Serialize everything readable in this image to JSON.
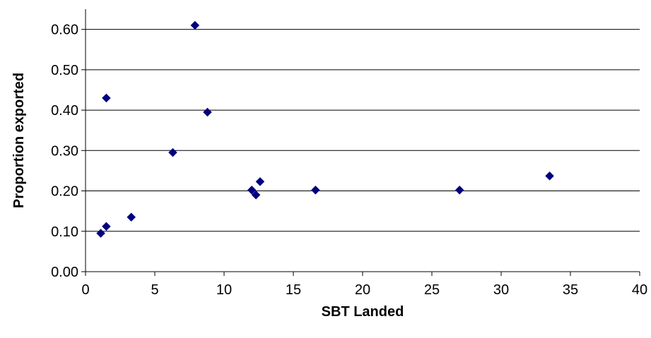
{
  "chart_data": {
    "type": "scatter",
    "title": "",
    "xlabel": "SBT Landed",
    "ylabel": "Proportion exported",
    "xlim": [
      0,
      40
    ],
    "ylim": [
      0,
      0.65
    ],
    "xticks": [
      0,
      5,
      10,
      15,
      20,
      25,
      30,
      35,
      40
    ],
    "xtick_labels": [
      "0",
      "5",
      "10",
      "15",
      "20",
      "25",
      "30",
      "35",
      "40"
    ],
    "yticks": [
      0,
      0.1,
      0.2,
      0.3,
      0.4,
      0.5,
      0.6
    ],
    "ytick_labels": [
      "0.00",
      "0.10",
      "0.20",
      "0.30",
      "0.40",
      "0.50",
      "0.60"
    ],
    "grid": "horizontal",
    "legend": "none",
    "marker": "diamond",
    "series": [
      {
        "color": "#000080",
        "points": [
          {
            "x": 1.1,
            "y": 0.095
          },
          {
            "x": 1.5,
            "y": 0.112
          },
          {
            "x": 1.5,
            "y": 0.43
          },
          {
            "x": 3.3,
            "y": 0.135
          },
          {
            "x": 6.3,
            "y": 0.295
          },
          {
            "x": 7.9,
            "y": 0.61
          },
          {
            "x": 8.8,
            "y": 0.395
          },
          {
            "x": 12.0,
            "y": 0.202
          },
          {
            "x": 12.3,
            "y": 0.19
          },
          {
            "x": 12.6,
            "y": 0.223
          },
          {
            "x": 16.6,
            "y": 0.202
          },
          {
            "x": 27.0,
            "y": 0.202
          },
          {
            "x": 33.5,
            "y": 0.237
          }
        ]
      }
    ]
  }
}
